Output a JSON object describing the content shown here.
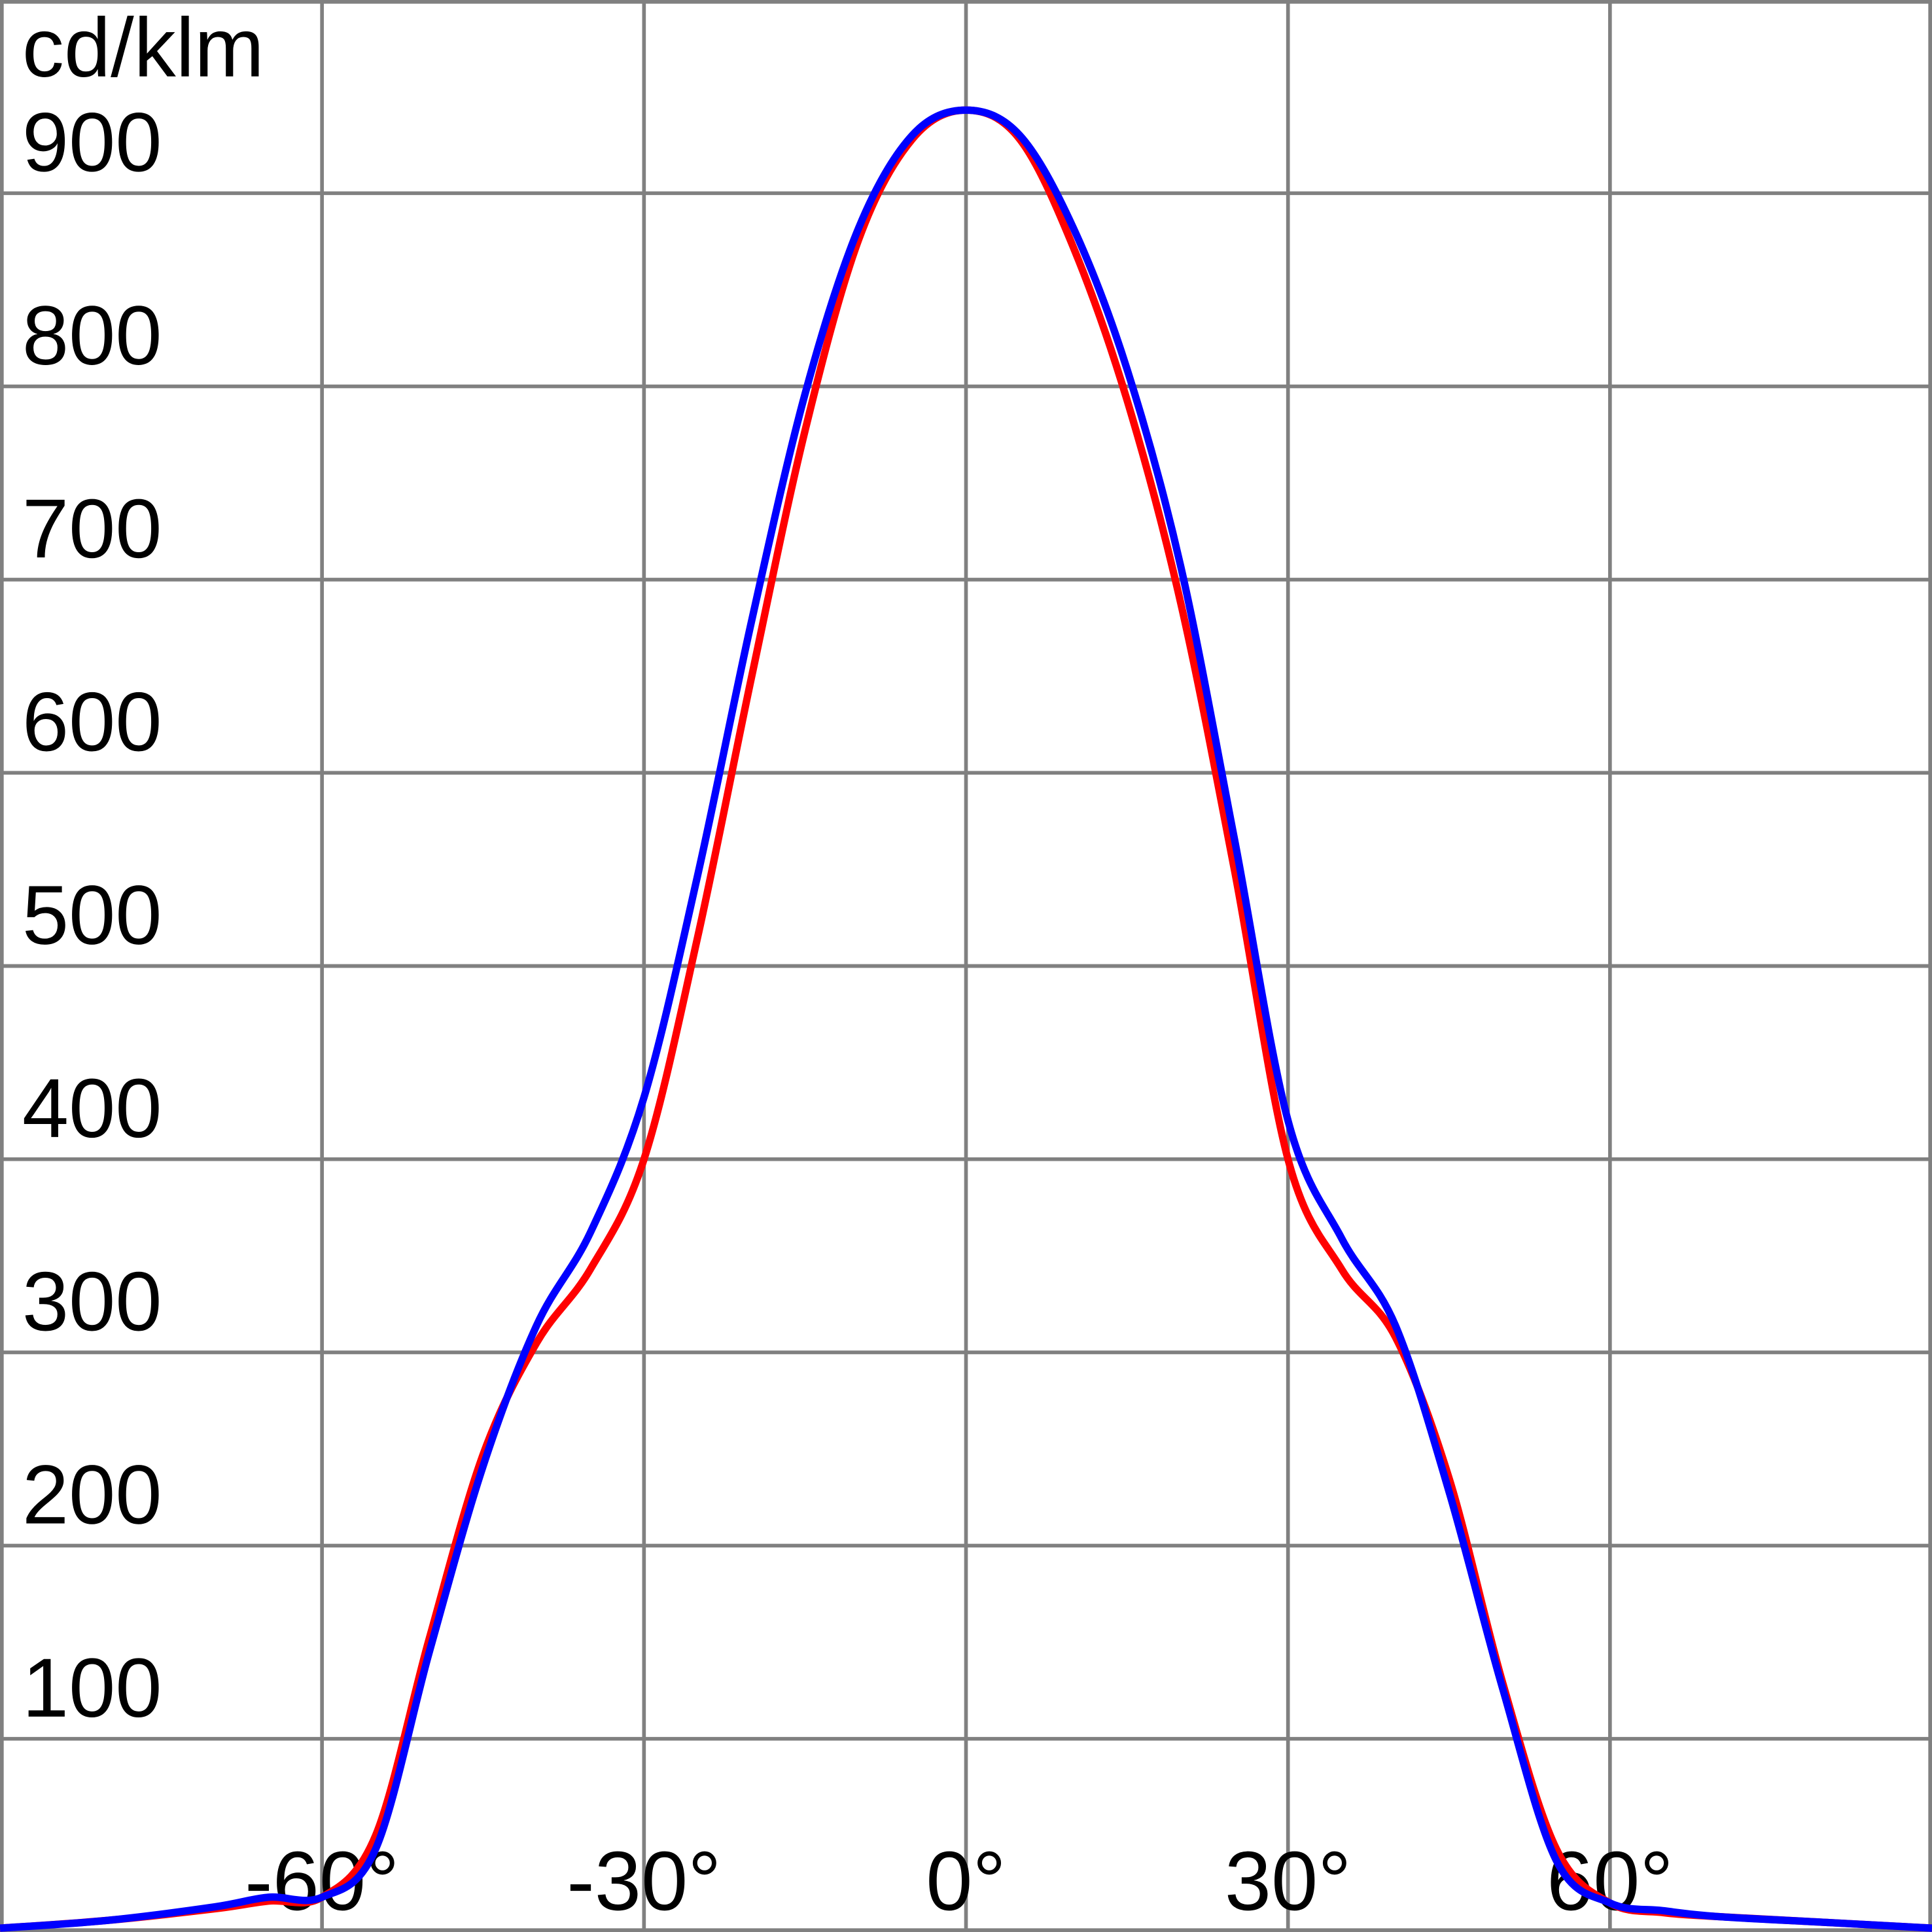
{
  "chart_data": {
    "type": "line",
    "y_label": "cd/klm",
    "x": [
      -90,
      -80,
      -70,
      -65,
      -60,
      -55,
      -50,
      -45,
      -40,
      -35,
      -30,
      -25,
      -20,
      -15,
      -10,
      -5,
      0,
      5,
      10,
      15,
      20,
      25,
      30,
      35,
      40,
      45,
      50,
      55,
      60,
      65,
      70,
      80,
      90
    ],
    "series": [
      {
        "color": "#ff0000",
        "values": [
          2,
          6,
          12,
          16,
          18,
          50,
          152,
          247,
          305,
          343,
          400,
          515,
          649,
          777,
          876,
          928,
          943,
          928,
          872,
          793,
          688,
          550,
          400,
          343,
          308,
          235,
          129,
          43,
          15,
          10,
          8,
          5,
          2
        ]
      },
      {
        "color": "#0000ff",
        "values": [
          2,
          6,
          13,
          18,
          18,
          43,
          145,
          241,
          314,
          362,
          432,
          547,
          678,
          796,
          882,
          930,
          943,
          930,
          882,
          809,
          707,
          566,
          420,
          359,
          314,
          228,
          126,
          37,
          15,
          11,
          8,
          5,
          2
        ]
      }
    ],
    "xlim": [
      -90,
      90
    ],
    "ylim": [
      0,
      1000
    ],
    "xticks": [
      {
        "value": -60,
        "label": "-60°"
      },
      {
        "value": -30,
        "label": "-30°"
      },
      {
        "value": 0,
        "label": "0°"
      },
      {
        "value": 30,
        "label": "30°"
      },
      {
        "value": 60,
        "label": "60°"
      }
    ],
    "yticks": [
      100,
      200,
      300,
      400,
      500,
      600,
      700,
      800,
      900
    ],
    "grid": true
  }
}
